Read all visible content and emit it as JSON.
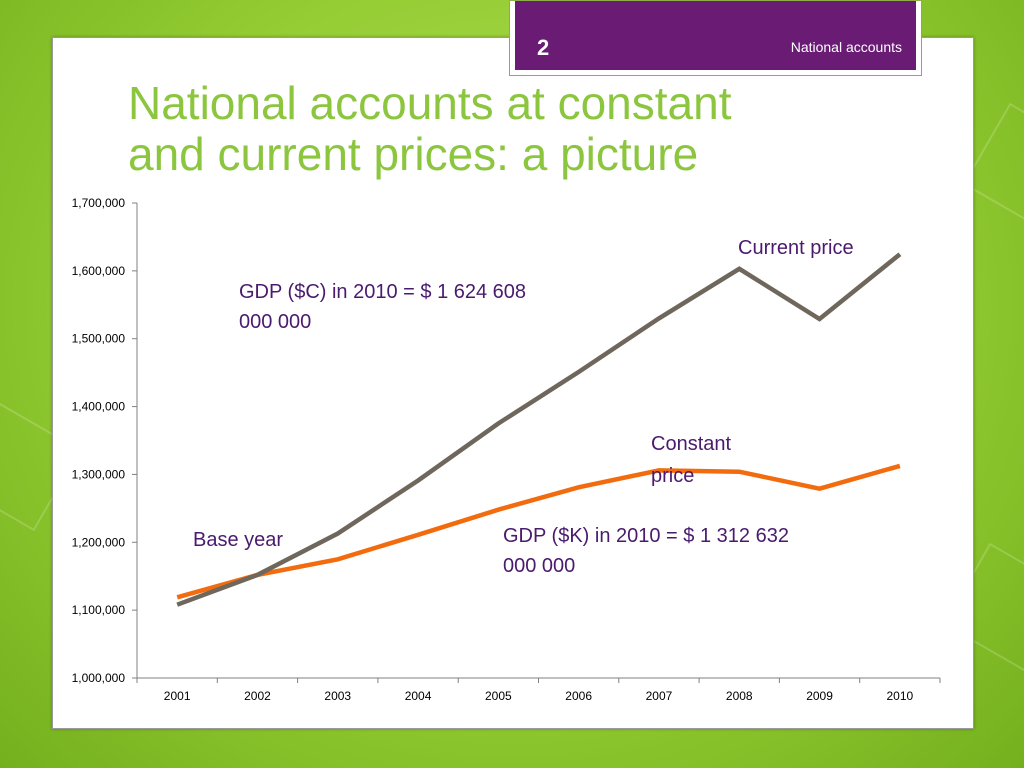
{
  "slide": {
    "number": "2",
    "section": "National accounts",
    "title_line1": "National accounts at constant",
    "title_line2": "and current prices: a picture"
  },
  "colors": {
    "title": "#8cc63f",
    "tab": "#6a1b74",
    "current_line": "#6f665c",
    "constant_line": "#f26c0f",
    "annotation": "#4a1a6e"
  },
  "chart_data": {
    "type": "line",
    "x": [
      "2001",
      "2002",
      "2003",
      "2004",
      "2005",
      "2006",
      "2007",
      "2008",
      "2009",
      "2010"
    ],
    "ylim": [
      1000000,
      1700000
    ],
    "yticks": [
      1000000,
      1100000,
      1200000,
      1300000,
      1400000,
      1500000,
      1600000,
      1700000
    ],
    "ytick_labels": [
      "1,000,000",
      "1,100,000",
      "1,200,000",
      "1,300,000",
      "1,400,000",
      "1,500,000",
      "1,600,000",
      "1,700,000"
    ],
    "grid": false,
    "series": [
      {
        "name": "Current price",
        "color": "#6f665c",
        "values": [
          1108000,
          1152000,
          1213000,
          1291000,
          1375000,
          1451000,
          1530000,
          1603000,
          1529000,
          1624608
        ]
      },
      {
        "name": "Constant price",
        "color": "#f26c0f",
        "values": [
          1119000,
          1152000,
          1175000,
          1211000,
          1248000,
          1281000,
          1306000,
          1304000,
          1279000,
          1312632
        ]
      }
    ],
    "annotations": {
      "gdp_current_line1": "GDP ($C) in 2010 = $ 1 624 608",
      "gdp_current_line2": "000 000",
      "gdp_constant_line1": "GDP ($K) in 2010 = $ 1 312 632",
      "gdp_constant_line2": "000 000",
      "base_year": "Base year",
      "current_label": "Current price",
      "constant_label_line1": "Constant",
      "constant_label_line2": "price"
    }
  }
}
